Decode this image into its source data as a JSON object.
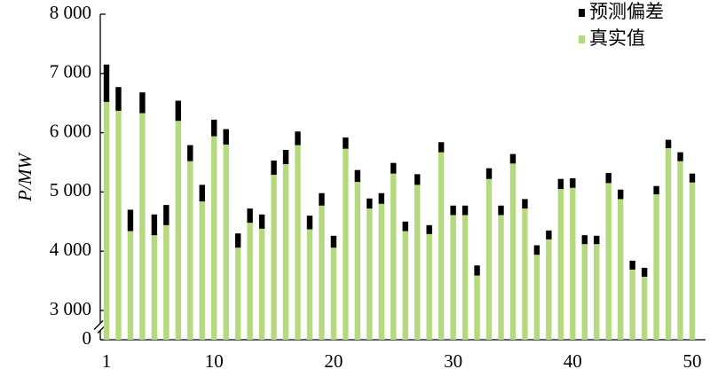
{
  "chart_data": {
    "type": "stacked_bar",
    "y_label": "P/MW",
    "x": [
      1,
      2,
      3,
      4,
      5,
      6,
      7,
      8,
      9,
      10,
      11,
      12,
      13,
      14,
      15,
      16,
      17,
      18,
      19,
      20,
      21,
      22,
      23,
      24,
      25,
      26,
      27,
      28,
      29,
      30,
      31,
      32,
      33,
      34,
      35,
      36,
      37,
      38,
      39,
      40,
      41,
      42,
      43,
      44,
      45,
      46,
      47,
      48,
      49,
      50
    ],
    "xlim": [
      1,
      50
    ],
    "xticks": [
      1,
      10,
      20,
      30,
      40,
      50
    ],
    "ylim": [
      0,
      8000
    ],
    "y_break": [
      0,
      3000
    ],
    "yticks": [
      0,
      {
        "value": 3000,
        "label": "3 000"
      },
      {
        "value": 4000,
        "label": "4 000"
      },
      {
        "value": 5000,
        "label": "5 000"
      },
      {
        "value": 6000,
        "label": "6 000"
      },
      {
        "value": 7000,
        "label": "7 000"
      },
      {
        "value": 8000,
        "label": "8 000"
      }
    ],
    "series": [
      {
        "name": "真实值",
        "color": "#b5d97e",
        "values": [
          6520,
          6370,
          4340,
          6330,
          4270,
          4440,
          6200,
          5520,
          4840,
          5940,
          5800,
          4060,
          4480,
          4380,
          5290,
          5470,
          5790,
          4370,
          4770,
          4060,
          5730,
          5170,
          4720,
          4800,
          5310,
          4340,
          5120,
          4290,
          5670,
          4610,
          4610,
          3590,
          5220,
          4610,
          5480,
          4720,
          3940,
          4200,
          5050,
          5070,
          4120,
          4120,
          5150,
          4880,
          3690,
          3570,
          4960,
          5740,
          5520,
          5160
        ]
      },
      {
        "name": "预测偏差",
        "color": "#000000",
        "values": [
          630,
          400,
          360,
          350,
          350,
          340,
          340,
          270,
          280,
          280,
          260,
          240,
          240,
          240,
          240,
          240,
          230,
          230,
          210,
          200,
          190,
          200,
          170,
          180,
          180,
          160,
          180,
          150,
          170,
          160,
          160,
          170,
          180,
          160,
          160,
          160,
          160,
          150,
          170,
          160,
          150,
          140,
          170,
          160,
          150,
          150,
          140,
          140,
          150,
          150
        ]
      }
    ],
    "legend": "upper-right"
  }
}
